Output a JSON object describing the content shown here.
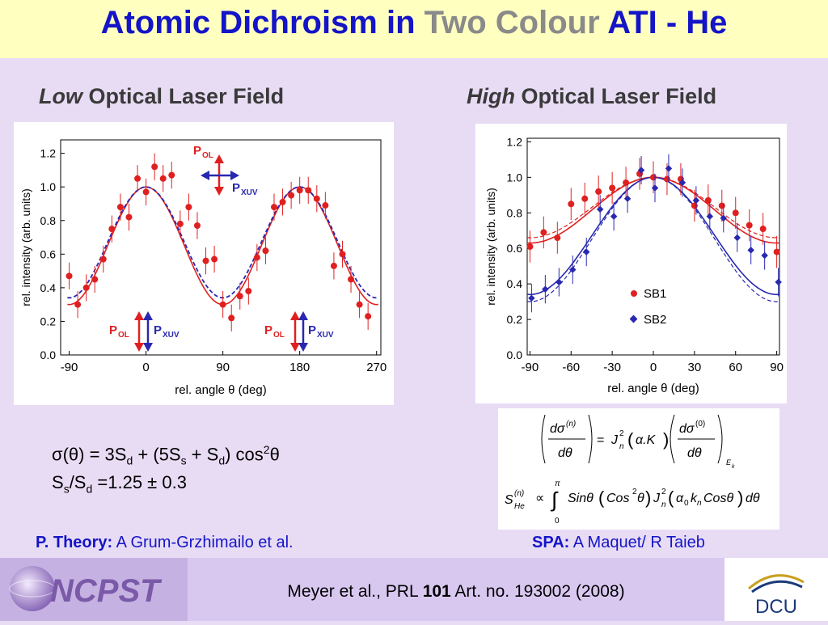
{
  "title": {
    "part1": "Atomic Dichroism in ",
    "part2": "Two Colour",
    "part3": " ATI - He"
  },
  "left_heading": {
    "italic": "Low",
    "rest": " Optical Laser Field"
  },
  "right_heading": {
    "italic": "High",
    "rest": " Optical Laser Field"
  },
  "left_chart": {
    "ylabel": "rel. intensity (arb. units)",
    "xlabel": "rel. angle θ (deg)",
    "xticks": [
      "-90",
      "0",
      "90",
      "180",
      "270"
    ],
    "yticks": [
      "0.0",
      "0.2",
      "0.4",
      "0.6",
      "0.8",
      "1.0",
      "1.2"
    ],
    "labels": {
      "pol": "P",
      "pol_sub": "OL",
      "pxuv": "P",
      "pxuv_sub": "XUV"
    }
  },
  "right_chart": {
    "ylabel": "rel. intensity (arb. units)",
    "xlabel": "rel. angle θ (deg)",
    "xticks": [
      "-90",
      "-60",
      "-30",
      "0",
      "30",
      "60",
      "90"
    ],
    "yticks": [
      "0.0",
      "0.2",
      "0.4",
      "0.6",
      "0.8",
      "1.0",
      "1.2"
    ],
    "legend": [
      "SB1",
      "SB2"
    ]
  },
  "chart_data": [
    {
      "type": "scatter",
      "xlabel": "rel. angle θ (deg)",
      "ylabel": "rel. intensity (arb. units)",
      "xlim": [
        -100,
        275
      ],
      "ylim": [
        0,
        1.28
      ],
      "series": [
        {
          "x": [
            -90,
            -80,
            -70,
            -60,
            -50,
            -40,
            -30,
            -20,
            -10,
            0,
            10,
            20,
            30,
            40,
            50,
            60,
            70,
            80,
            90,
            100,
            110,
            120,
            130,
            140,
            150,
            160,
            170,
            180,
            190,
            200,
            210,
            220,
            230,
            240,
            250,
            260
          ],
          "y": [
            0.47,
            0.3,
            0.4,
            0.45,
            0.57,
            0.75,
            0.88,
            0.82,
            1.05,
            0.97,
            1.12,
            1.05,
            1.07,
            0.78,
            0.88,
            0.77,
            0.56,
            0.57,
            0.3,
            0.22,
            0.35,
            0.38,
            0.58,
            0.62,
            0.88,
            0.91,
            0.95,
            0.98,
            0.98,
            0.93,
            0.89,
            0.53,
            0.6,
            0.45,
            0.3,
            0.23
          ]
        }
      ]
    },
    {
      "type": "scatter",
      "xlabel": "rel. angle θ (deg)",
      "ylabel": "rel. intensity (arb. units)",
      "xlim": [
        -92,
        92
      ],
      "ylim": [
        0,
        1.22
      ],
      "series": [
        {
          "name": "SB1",
          "x": [
            -90,
            -80,
            -70,
            -60,
            -50,
            -40,
            -30,
            -20,
            -10,
            0,
            10,
            20,
            30,
            40,
            50,
            60,
            70,
            80,
            90
          ],
          "y": [
            0.61,
            0.69,
            0.66,
            0.85,
            0.88,
            0.92,
            0.94,
            0.97,
            1.02,
            1.0,
            0.99,
            0.99,
            0.84,
            0.87,
            0.84,
            0.8,
            0.73,
            0.71,
            0.58
          ]
        },
        {
          "name": "SB2",
          "x": [
            -90,
            -80,
            -70,
            -60,
            -50,
            -40,
            -30,
            -20,
            -10,
            0,
            10,
            20,
            30,
            40,
            50,
            60,
            70,
            80,
            90
          ],
          "y": [
            0.32,
            0.37,
            0.41,
            0.48,
            0.58,
            0.82,
            0.78,
            0.88,
            1.04,
            0.94,
            1.05,
            0.97,
            0.87,
            0.78,
            0.77,
            0.66,
            0.59,
            0.56,
            0.41
          ]
        }
      ]
    }
  ],
  "formula": {
    "line1_a": "σ(θ) = 3S",
    "sub_d": "d",
    "line1_b": " + (5S",
    "sub_s": "s",
    "line1_c": " + S",
    "line1_d": ") cos",
    "sup2": "2",
    "theta": "θ",
    "line2_a": "S",
    "line2_b": "/S",
    "line2_c": " =1.25 ± 0.3"
  },
  "credits": {
    "theory_label": "P. Theory:",
    "theory_name": " A Grum-Grzhimailo et al.",
    "spa_label": "SPA:",
    "spa_name": " A Maquet/ R Taieb"
  },
  "citation": {
    "pre": "Meyer et al., PRL ",
    "vol": "101",
    "post": " Art. no. 193002 (2008)"
  },
  "logos": {
    "ncpst": "NCPST",
    "dcu": "DCU"
  },
  "colors": {
    "title_blue": "#1414c8",
    "sb1_red": "#e02020",
    "sb2_blue": "#2828b0"
  }
}
